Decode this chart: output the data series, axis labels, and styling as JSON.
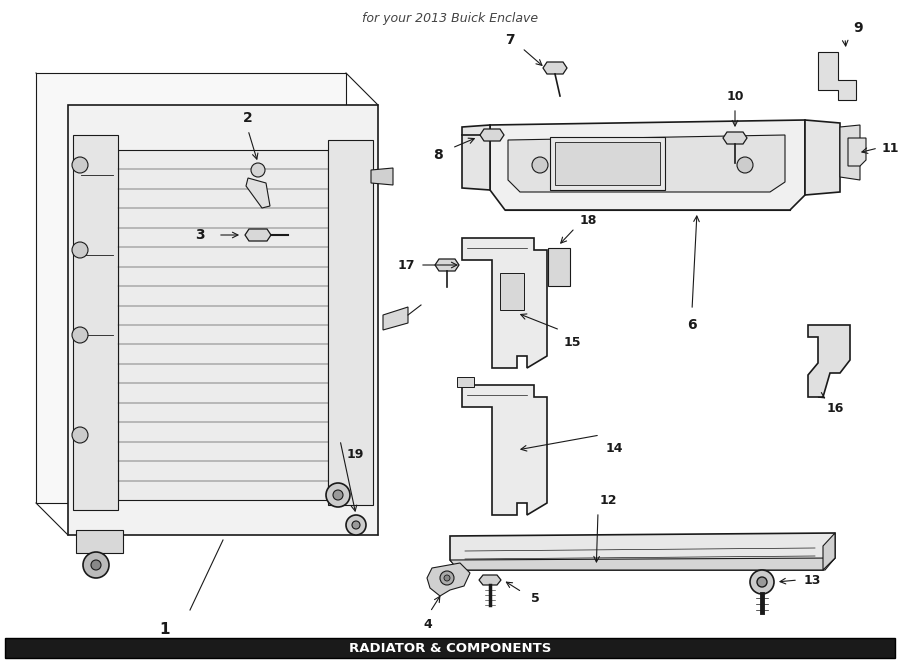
{
  "bg_color": "#ffffff",
  "line_color": "#1a1a1a",
  "title": "RADIATOR & COMPONENTS",
  "subtitle": "for your 2013 Buick Enclave",
  "fig_width": 9.0,
  "fig_height": 6.62,
  "dpi": 100
}
